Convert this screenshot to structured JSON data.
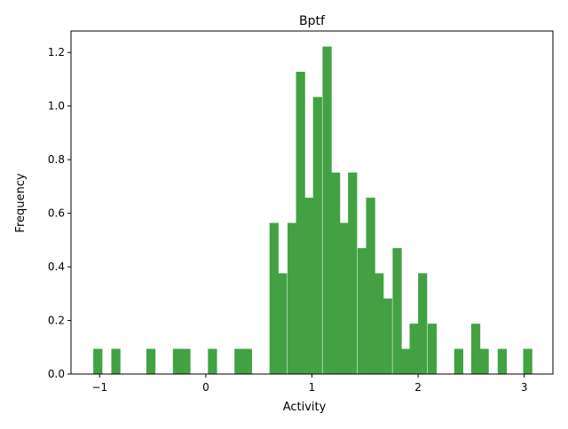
{
  "chart_data": {
    "type": "bar",
    "title": "Bptf",
    "xlabel": "Activity",
    "ylabel": "Frequency",
    "xlim": [
      -1.27,
      3.27
    ],
    "ylim": [
      0,
      1.28
    ],
    "bar_color": "#43a143",
    "bin_width": 0.0822,
    "x_ticks": [
      -1,
      0,
      1,
      2,
      3
    ],
    "x_tick_labels": [
      "−1",
      "0",
      "1",
      "2",
      "3"
    ],
    "y_ticks": [
      0.0,
      0.2,
      0.4,
      0.6,
      0.8,
      1.0,
      1.2
    ],
    "y_tick_labels": [
      "0.0",
      "0.2",
      "0.4",
      "0.6",
      "0.8",
      "1.0",
      "1.2"
    ],
    "bins": [
      {
        "x": -1.06,
        "y": 0.094
      },
      {
        "x": -0.89,
        "y": 0.094
      },
      {
        "x": -0.56,
        "y": 0.094
      },
      {
        "x": -0.31,
        "y": 0.094
      },
      {
        "x": -0.23,
        "y": 0.094
      },
      {
        "x": 0.02,
        "y": 0.094
      },
      {
        "x": 0.27,
        "y": 0.094
      },
      {
        "x": 0.35,
        "y": 0.094
      },
      {
        "x": 0.6,
        "y": 0.564
      },
      {
        "x": 0.68,
        "y": 0.376
      },
      {
        "x": 0.77,
        "y": 0.564
      },
      {
        "x": 0.85,
        "y": 1.128
      },
      {
        "x": 0.93,
        "y": 0.658
      },
      {
        "x": 1.01,
        "y": 1.034
      },
      {
        "x": 1.1,
        "y": 1.222
      },
      {
        "x": 1.18,
        "y": 0.752
      },
      {
        "x": 1.26,
        "y": 0.564
      },
      {
        "x": 1.34,
        "y": 0.752
      },
      {
        "x": 1.43,
        "y": 0.47
      },
      {
        "x": 1.51,
        "y": 0.658
      },
      {
        "x": 1.59,
        "y": 0.376
      },
      {
        "x": 1.67,
        "y": 0.282
      },
      {
        "x": 1.76,
        "y": 0.47
      },
      {
        "x": 1.84,
        "y": 0.094
      },
      {
        "x": 1.92,
        "y": 0.188
      },
      {
        "x": 2.0,
        "y": 0.376
      },
      {
        "x": 2.09,
        "y": 0.188
      },
      {
        "x": 2.34,
        "y": 0.094
      },
      {
        "x": 2.5,
        "y": 0.188
      },
      {
        "x": 2.58,
        "y": 0.094
      },
      {
        "x": 2.75,
        "y": 0.094
      },
      {
        "x": 2.99,
        "y": 0.094
      }
    ]
  }
}
